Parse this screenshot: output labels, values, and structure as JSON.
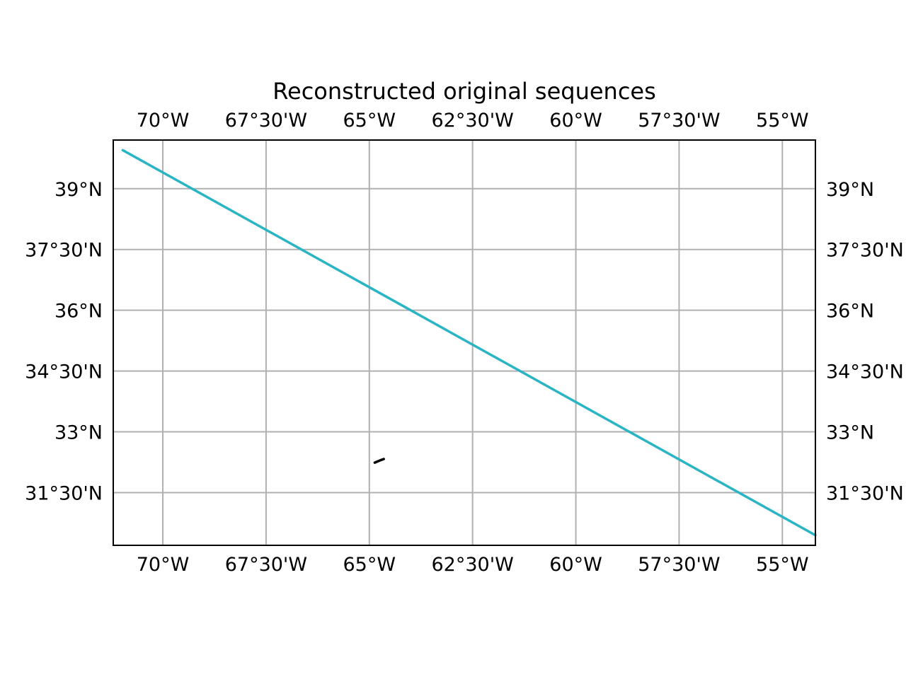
{
  "title": "Reconstructed original sequences",
  "map": {
    "lon_range": [
      -71.2,
      -54.2
    ],
    "lat_range": [
      30.2,
      40.2
    ],
    "gridline_color": "#b0b0b0",
    "frame_color": "#000000",
    "longitudes": [
      {
        "lon": -70.0,
        "label": "70°W"
      },
      {
        "lon": -67.5,
        "label": "67°30'W"
      },
      {
        "lon": -65.0,
        "label": "65°W"
      },
      {
        "lon": -62.5,
        "label": "62°30'W"
      },
      {
        "lon": -60.0,
        "label": "60°W"
      },
      {
        "lon": -57.5,
        "label": "57°30'W"
      },
      {
        "lon": -55.0,
        "label": "55°W"
      }
    ],
    "latitudes": [
      {
        "lat": 39.0,
        "label": "39°N"
      },
      {
        "lat": 37.5,
        "label": "37°30'N"
      },
      {
        "lat": 36.0,
        "label": "36°N"
      },
      {
        "lat": 34.5,
        "label": "34°30'N"
      },
      {
        "lat": 33.0,
        "label": "33°N"
      },
      {
        "lat": 31.5,
        "label": "31°30'N"
      }
    ],
    "tracks": [
      {
        "color": "#2bb5c4",
        "width": 3.5,
        "points": [
          [
            -70.97,
            39.95
          ],
          [
            -54.2,
            30.45
          ]
        ]
      },
      {
        "color": "#000000",
        "width": 3.5,
        "points": [
          [
            -64.87,
            32.24
          ],
          [
            -64.8,
            32.27
          ],
          [
            -64.73,
            32.3
          ],
          [
            -64.65,
            32.33
          ]
        ]
      }
    ]
  }
}
